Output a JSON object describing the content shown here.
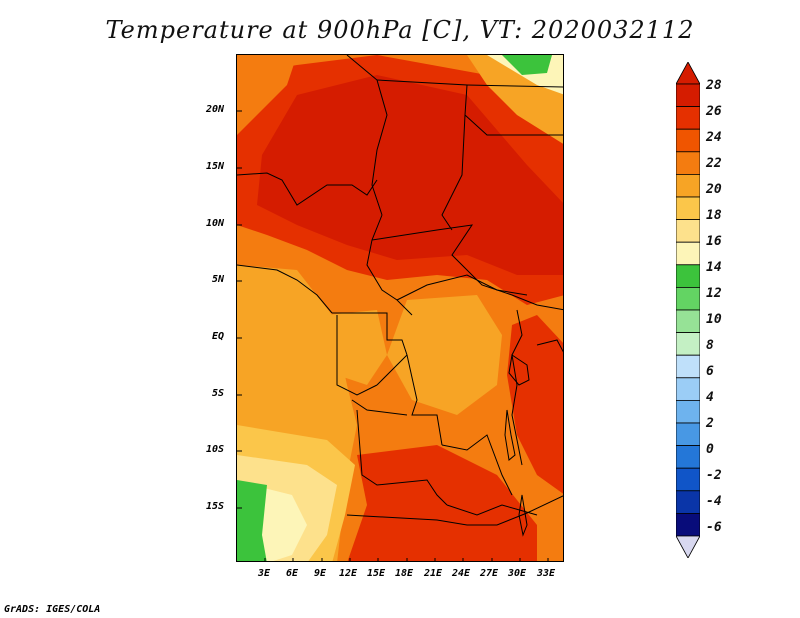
{
  "title": "Temperature at 900hPa [C], VT: 2020032112",
  "footer": "GrADS: IGES/COLA",
  "lat_labels": [
    "20N",
    "15N",
    "10N",
    "5N",
    "EQ",
    "5S",
    "10S",
    "15S"
  ],
  "lon_labels": [
    "3E",
    "6E",
    "9E",
    "12E",
    "15E",
    "18E",
    "21E",
    "24E",
    "27E",
    "30E",
    "33E"
  ],
  "colorbar": {
    "labels": [
      "28",
      "26",
      "24",
      "22",
      "20",
      "18",
      "16",
      "14",
      "12",
      "10",
      "8",
      "6",
      "4",
      "2",
      "0",
      "-2",
      "-4",
      "-6"
    ],
    "colors": [
      "#d51c00",
      "#e53000",
      "#f05500",
      "#f47c10",
      "#f7a425",
      "#fbc64a",
      "#fde18c",
      "#fdf5b8",
      "#3cc33c",
      "#63d463",
      "#96e296",
      "#c4f0c4",
      "#bfe0fa",
      "#9bcdf6",
      "#6eb3ee",
      "#4898e4",
      "#2477d8",
      "#1055c8",
      "#0a35a8",
      "#080c7a"
    ],
    "top_arrow_color": "#d51c00",
    "bottom_arrow_color": "#d8d8f0"
  }
}
